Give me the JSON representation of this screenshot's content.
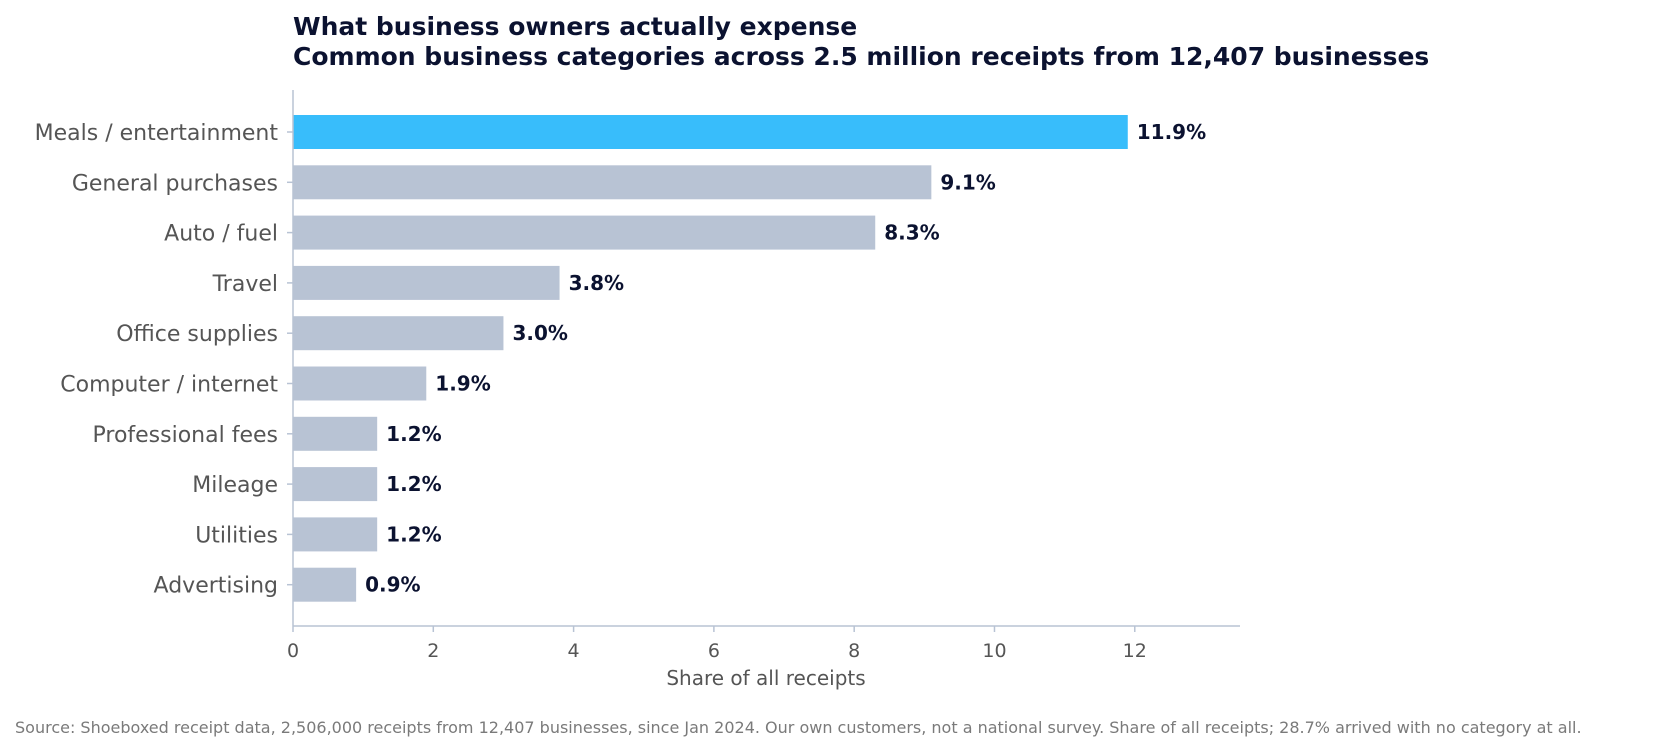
{
  "chart_data": {
    "type": "bar",
    "orientation": "horizontal",
    "title": "What business owners actually expense",
    "subtitle": "Common business categories across 2.5 million receipts from 12,407 businesses",
    "categories": [
      "Meals / entertainment",
      "General purchases",
      "Auto / fuel",
      "Travel",
      "Office supplies",
      "Computer / internet",
      "Professional fees",
      "Mileage",
      "Utilities",
      "Advertising"
    ],
    "values": [
      11.9,
      9.1,
      8.3,
      3.8,
      3.0,
      1.9,
      1.2,
      1.2,
      1.2,
      0.9
    ],
    "value_labels": [
      "11.9%",
      "9.1%",
      "8.3%",
      "3.8%",
      "3.0%",
      "1.9%",
      "1.2%",
      "1.2%",
      "1.2%",
      "0.9%"
    ],
    "xlabel": "Share of all receipts",
    "ylabel": "",
    "xlim": [
      0,
      13.5
    ],
    "xticks": [
      0,
      2,
      4,
      6,
      8,
      10,
      12
    ],
    "grid": false,
    "colors": {
      "highlight": "#38bdfb",
      "bar": "#b8c3d4",
      "axis": "#b8c3d4",
      "text_dark": "#0b1230"
    },
    "highlight_index": 0,
    "source": "Source: Shoeboxed receipt data, 2,506,000 receipts from 12,407 businesses, since Jan 2024. Our own customers, not a national survey. Share of all receipts; 28.7% arrived with no category at all."
  }
}
